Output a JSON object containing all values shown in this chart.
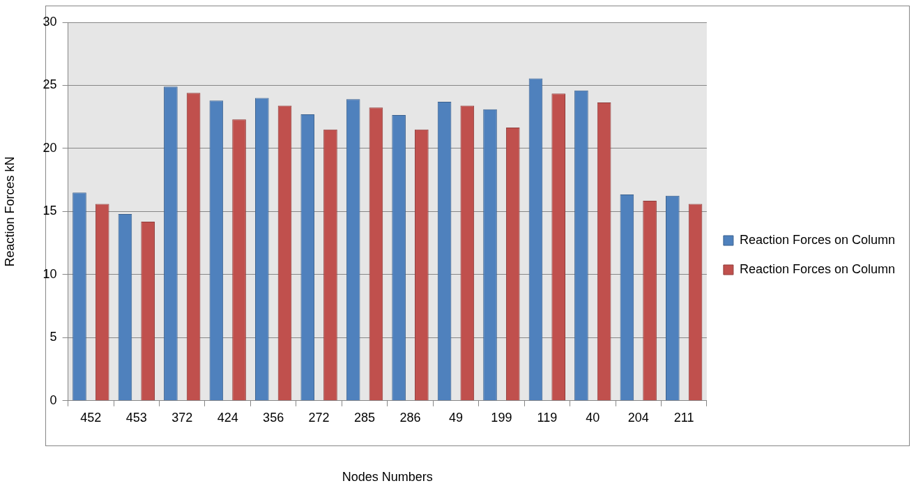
{
  "chart_data": {
    "type": "bar",
    "xlabel": "Nodes Numbers",
    "ylabel": "Reaction Forces kN",
    "categories": [
      "452",
      "453",
      "372",
      "424",
      "356",
      "272",
      "285",
      "286",
      "49",
      "199",
      "119",
      "40",
      "204",
      "211"
    ],
    "series": [
      {
        "name": "Reaction Forces on Column",
        "color": "#4f81bd",
        "values": [
          16.5,
          14.8,
          24.9,
          23.8,
          24.0,
          22.7,
          23.9,
          22.65,
          23.7,
          23.1,
          25.55,
          24.6,
          16.35,
          16.25
        ]
      },
      {
        "name": "Reaction Forces on Column",
        "color": "#c0504d",
        "values": [
          15.6,
          14.2,
          24.4,
          22.3,
          23.4,
          21.5,
          23.25,
          21.5,
          23.4,
          21.65,
          24.35,
          23.65,
          15.85,
          15.6
        ]
      }
    ],
    "ylim": [
      0,
      30
    ],
    "yticks": [
      0,
      5,
      10,
      15,
      20,
      25,
      30
    ],
    "grid": "y",
    "legend": "right"
  }
}
